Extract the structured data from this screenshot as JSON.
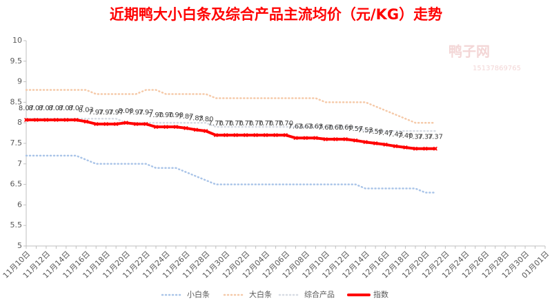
{
  "chart_data": {
    "type": "line",
    "title": "近期鸭大小白条及综合产品主流均价（元/KG）走势",
    "watermark": [
      "鸭子网",
      "15137869765"
    ],
    "categories": [
      "11月10日",
      null,
      "11月12日",
      null,
      "11月14日",
      null,
      "11月16日",
      null,
      "11月18日",
      null,
      "11月20日",
      null,
      "11月22日",
      null,
      "11月24日",
      null,
      "11月26日",
      null,
      "11月28日",
      null,
      "11月30日",
      null,
      "12月02日",
      null,
      "12月04日",
      null,
      "12月06日",
      null,
      "12月08日",
      null,
      "12月10日",
      null,
      "12月12日",
      null,
      "12月14日",
      null,
      "12月16日",
      null,
      "12月18日",
      null,
      "12月20日",
      null,
      "12月22日",
      null,
      "12月24日",
      null,
      "12月26日",
      null,
      "12月28日",
      null,
      "12月30日",
      null,
      "01月01日"
    ],
    "series": [
      {
        "name": "小白条",
        "color": "#a9c4e8",
        "values": [
          7.2,
          7.2,
          7.2,
          7.2,
          7.2,
          7.2,
          7.1,
          7.0,
          7.0,
          7.0,
          7.0,
          7.0,
          7.0,
          6.9,
          6.9,
          6.9,
          6.8,
          6.7,
          6.6,
          6.5,
          6.5,
          6.5,
          6.5,
          6.5,
          6.5,
          6.5,
          6.5,
          6.5,
          6.5,
          6.5,
          6.5,
          6.5,
          6.5,
          6.5,
          6.4,
          6.4,
          6.4,
          6.4,
          6.4,
          6.4,
          6.3,
          6.3,
          null,
          null,
          null,
          null,
          null,
          null,
          null,
          null,
          null,
          null,
          null
        ]
      },
      {
        "name": "大白条",
        "color": "#f5c9a8",
        "values": [
          8.8,
          8.8,
          8.8,
          8.8,
          8.8,
          8.8,
          8.8,
          8.7,
          8.7,
          8.7,
          8.7,
          8.7,
          8.8,
          8.8,
          8.7,
          8.7,
          8.7,
          8.7,
          8.7,
          8.6,
          8.6,
          8.6,
          8.6,
          8.6,
          8.6,
          8.6,
          8.6,
          8.6,
          8.6,
          8.6,
          8.5,
          8.5,
          8.5,
          8.5,
          8.5,
          8.4,
          8.3,
          8.2,
          8.1,
          8.0,
          8.0,
          8.0,
          null,
          null,
          null,
          null,
          null,
          null,
          null,
          null,
          null,
          null,
          null
        ]
      },
      {
        "name": "综合产品",
        "color": "#d6dbe3",
        "values": [
          8.1,
          8.1,
          8.1,
          8.1,
          8.1,
          8.1,
          8.1,
          8.1,
          8.1,
          8.1,
          8.0,
          8.0,
          8.0,
          8.0,
          8.0,
          8.0,
          8.0,
          8.0,
          8.0,
          7.9,
          7.9,
          7.9,
          7.9,
          7.9,
          7.9,
          7.9,
          7.9,
          7.9,
          7.9,
          7.9,
          7.9,
          7.9,
          7.9,
          7.9,
          7.8,
          7.8,
          7.8,
          7.8,
          7.8,
          7.8,
          7.8,
          7.8,
          null,
          null,
          null,
          null,
          null,
          null,
          null,
          null,
          null,
          null,
          null
        ]
      },
      {
        "name": "指数",
        "color": "#ff0000",
        "values": [
          8.07,
          8.07,
          8.07,
          8.07,
          8.07,
          8.07,
          8.03,
          7.97,
          7.97,
          7.97,
          8,
          7.97,
          7.97,
          7.9,
          7.9,
          7.9,
          7.87,
          7.83,
          7.8,
          7.7,
          7.7,
          7.7,
          7.7,
          7.7,
          7.7,
          7.7,
          7.7,
          7.63,
          7.63,
          7.63,
          7.6,
          7.6,
          7.6,
          7.57,
          7.53,
          7.5,
          7.47,
          7.43,
          7.4,
          7.37,
          7.37,
          7.37,
          null,
          null,
          null,
          null,
          null,
          null,
          null,
          null,
          null,
          null,
          null
        ],
        "value_labels": [
          "8.07",
          "8.07",
          "8.07",
          "8.07",
          "8.07",
          "8.07",
          "8.03",
          "7.97",
          "7.97",
          "7.97",
          "8.00",
          "7.97",
          "7.97",
          "7.90",
          "7.90",
          "7.90",
          "7.87",
          "7.83",
          "7.80",
          "7.70",
          "7.70",
          "7.70",
          "7.70",
          "7.70",
          "7.70",
          "7.70",
          "7.70",
          "7.63",
          "7.63",
          "7.63",
          "7.60",
          "7.60",
          "7.60",
          "7.57",
          "7.53",
          "7.50",
          "7.47",
          "7.43",
          "7.40",
          "7.37",
          "7.37",
          "7.37",
          null,
          null,
          null,
          null,
          null,
          null,
          null,
          null,
          null,
          null,
          null
        ]
      }
    ],
    "ylim": [
      5,
      10
    ],
    "yticks": [
      5,
      5.5,
      6,
      6.5,
      7,
      7.5,
      8,
      8.5,
      9,
      9.5,
      10
    ],
    "grid": false,
    "legend": "bottom"
  }
}
